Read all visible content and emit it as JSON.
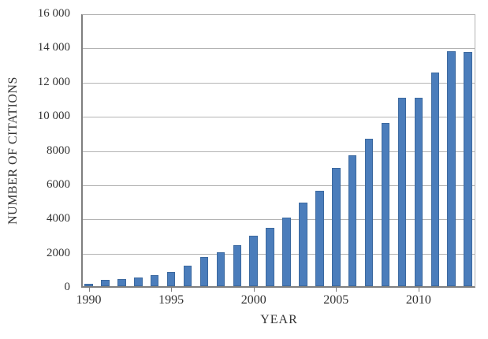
{
  "chart_data": {
    "type": "bar",
    "title": "",
    "xlabel": "YEAR",
    "ylabel": "NUMBER OF CITATIONS",
    "categories": [
      1990,
      1991,
      1992,
      1993,
      1994,
      1995,
      1996,
      1997,
      1998,
      1999,
      2000,
      2001,
      2002,
      2003,
      2004,
      2005,
      2006,
      2007,
      2008,
      2009,
      2010,
      2011,
      2012,
      2013
    ],
    "values": [
      140,
      370,
      430,
      520,
      650,
      850,
      1200,
      1710,
      1990,
      2400,
      2930,
      3410,
      4000,
      4890,
      5600,
      6900,
      7650,
      8600,
      9550,
      11000,
      11000,
      12500,
      13750,
      13700
    ],
    "ylim": [
      0,
      16000
    ],
    "ytick_interval": 2000,
    "ytick_labels": [
      "0",
      "2000",
      "4000",
      "6000",
      "8000",
      "10 000",
      "12 000",
      "14 000",
      "16 000"
    ],
    "xtick_years": [
      "1990",
      "1995",
      "2000",
      "2005",
      "2010"
    ],
    "grid": true,
    "legend_position": "none"
  },
  "style": {
    "bar_fill": "#4b7dbb",
    "bar_border": "#3c699f",
    "grid_color": "#b3b3b3",
    "axis_color": "#7f7f7f",
    "text_color": "#333333",
    "background": "#ffffff"
  }
}
